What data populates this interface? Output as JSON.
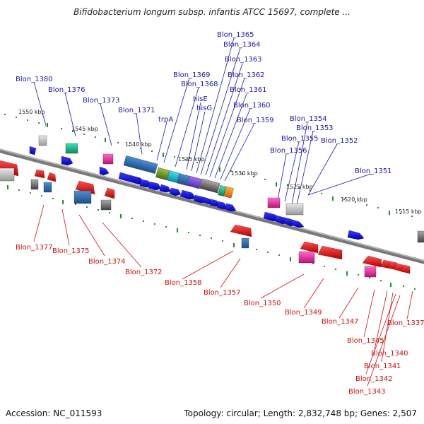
{
  "title": "Bifidobacterium longum subsp. infantis ATCC 15697, complete ...",
  "accession": "Accession: NC_011593",
  "topology": "Topology: circular; Length: 2,832,748 bp; Genes: 2,507",
  "kbp_labels": [
    "1550 kbp",
    "1545 kbp",
    "1540 kbp",
    "1535 kbp",
    "1530 kbp",
    "1525 kbp",
    "1520 kbp",
    "1515 kbp"
  ],
  "top_genes": [
    "Blon_1380",
    "Blon_1376",
    "Blon_1373",
    "Blon_1371",
    "trpA",
    "Blon_1369",
    "Blon_1368",
    "hisE",
    "hisG",
    "Blon_1365",
    "Blon_1364",
    "Blon_1363",
    "Blon_1362",
    "Blon_1361",
    "Blon_1360",
    "Blon_1359",
    "Blon_1356",
    "Blon_1355",
    "Blon_1354",
    "Blon_1353",
    "Blon_1352",
    "Blon_1351"
  ],
  "bottom_genes": [
    "Blon_1377",
    "Blon_1375",
    "Blon_1374",
    "Blon_1372",
    "Blon_1358",
    "Blon_1357",
    "Blon_1350",
    "Blon_1349",
    "Blon_1347",
    "Blon_1345",
    "Blon_1337",
    "Blon_1340",
    "Blon_1341",
    "Blon_1342",
    "Blon_1343"
  ],
  "colors": {
    "forward": "#1010d0",
    "reverse": "#e01010",
    "backbone": "#888888",
    "tick": "#2a8a2a"
  }
}
